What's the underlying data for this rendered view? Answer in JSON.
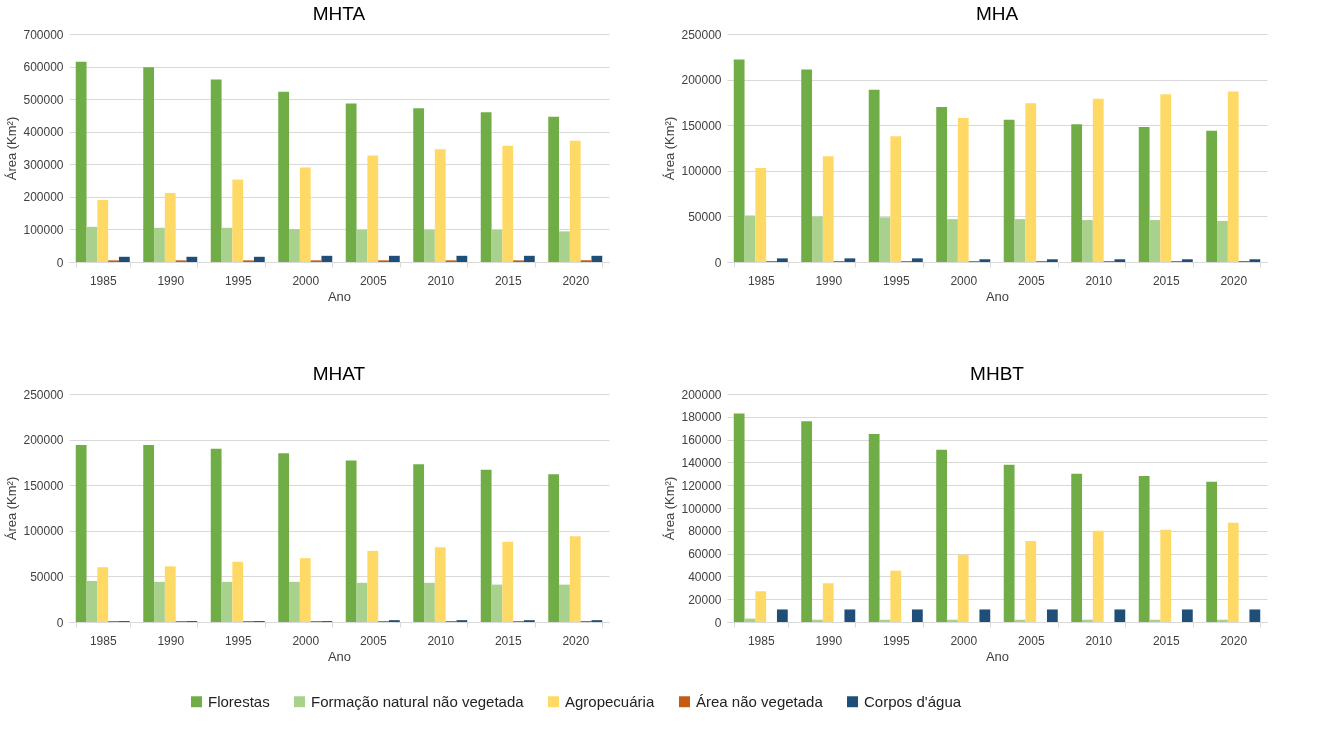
{
  "chart_data": [
    {
      "type": "bar",
      "title": "MHTA",
      "xlabel": "Ano",
      "ylabel": "Área (Km²)",
      "categories": [
        "1985",
        "1990",
        "1995",
        "2000",
        "2005",
        "2010",
        "2015",
        "2020"
      ],
      "ylim": [
        0,
        700000
      ],
      "yticks": [
        0,
        100000,
        200000,
        300000,
        400000,
        500000,
        600000,
        700000
      ],
      "grid": "y",
      "series": [
        {
          "color": "#70ad47",
          "values": [
            615000,
            598000,
            560000,
            523000,
            487000,
            472000,
            460000,
            446000
          ]
        },
        {
          "color": "#a9d18e",
          "values": [
            108000,
            105000,
            105000,
            101000,
            99000,
            99000,
            99000,
            94000
          ]
        },
        {
          "color": "#ffd966",
          "values": [
            190000,
            212000,
            253000,
            290000,
            327000,
            346000,
            357000,
            372000
          ]
        },
        {
          "color": "#c55a11",
          "values": [
            5000,
            5000,
            5000,
            5000,
            5000,
            5000,
            5000,
            5000
          ]
        },
        {
          "color": "#1f4e79",
          "values": [
            16000,
            16000,
            16000,
            19000,
            19000,
            19000,
            19000,
            19000
          ]
        }
      ]
    },
    {
      "type": "bar",
      "title": "MHA",
      "xlabel": "Ano",
      "ylabel": "Área (Km²)",
      "categories": [
        "1985",
        "1990",
        "1995",
        "2000",
        "2005",
        "2010",
        "2015",
        "2020"
      ],
      "ylim": [
        0,
        250000
      ],
      "yticks": [
        0,
        50000,
        100000,
        150000,
        200000,
        250000
      ],
      "grid": "y",
      "series": [
        {
          "color": "#70ad47",
          "values": [
            222000,
            211000,
            189000,
            170000,
            156000,
            151000,
            148000,
            144000
          ]
        },
        {
          "color": "#a9d18e",
          "values": [
            51000,
            50000,
            49000,
            47000,
            47000,
            46000,
            46000,
            45000
          ]
        },
        {
          "color": "#ffd966",
          "values": [
            103000,
            116000,
            138000,
            158000,
            174000,
            179000,
            184000,
            187000
          ]
        },
        {
          "color": "#c55a11",
          "values": [
            1000,
            1000,
            1000,
            1000,
            1000,
            1000,
            1000,
            1000
          ]
        },
        {
          "color": "#1f4e79",
          "values": [
            4000,
            4000,
            4000,
            3000,
            3000,
            3000,
            3000,
            3000
          ]
        }
      ]
    },
    {
      "type": "bar",
      "title": "MHAT",
      "xlabel": "Ano",
      "ylabel": "Área (Km²)",
      "categories": [
        "1985",
        "1990",
        "1995",
        "2000",
        "2005",
        "2010",
        "2015",
        "2020"
      ],
      "ylim": [
        0,
        250000
      ],
      "yticks": [
        0,
        50000,
        100000,
        150000,
        200000,
        250000
      ],
      "grid": "y",
      "legend": "bottom",
      "series": [
        {
          "name": "Florestas",
          "color": "#70ad47",
          "values": [
            194000,
            194000,
            190000,
            185000,
            177000,
            173000,
            167000,
            162000
          ]
        },
        {
          "name": "Formação natural não vegetada",
          "color": "#a9d18e",
          "values": [
            45000,
            44000,
            44000,
            44000,
            43000,
            43000,
            41000,
            41000
          ]
        },
        {
          "name": "Agropecuária",
          "color": "#ffd966",
          "values": [
            60000,
            61000,
            66000,
            70000,
            78000,
            82000,
            88000,
            94000
          ]
        },
        {
          "name": "Área não vegetada",
          "color": "#c55a11",
          "values": [
            1000,
            1000,
            1000,
            1000,
            1000,
            1000,
            1000,
            1000
          ]
        },
        {
          "name": "Corpos d'água",
          "color": "#1f4e79",
          "values": [
            1000,
            1000,
            1000,
            1000,
            2000,
            2000,
            2000,
            2000
          ]
        }
      ]
    },
    {
      "type": "bar",
      "title": "MHBT",
      "xlabel": "Ano",
      "ylabel": "Área (Km²)",
      "categories": [
        "1985",
        "1990",
        "1995",
        "2000",
        "2005",
        "2010",
        "2015",
        "2020"
      ],
      "ylim": [
        0,
        200000
      ],
      "yticks": [
        0,
        20000,
        40000,
        60000,
        80000,
        100000,
        120000,
        140000,
        160000,
        180000,
        200000
      ],
      "grid": "y",
      "series": [
        {
          "color": "#70ad47",
          "values": [
            183000,
            176000,
            165000,
            151000,
            138000,
            130000,
            128000,
            123000
          ]
        },
        {
          "color": "#a9d18e",
          "values": [
            3000,
            2000,
            2000,
            2000,
            2000,
            2000,
            2000,
            2000
          ]
        },
        {
          "color": "#ffd966",
          "values": [
            27000,
            34000,
            45000,
            59000,
            71000,
            80000,
            81000,
            87000
          ]
        },
        {
          "color": "#c55a11",
          "values": [
            0,
            0,
            0,
            0,
            0,
            0,
            0,
            0
          ]
        },
        {
          "color": "#1f4e79",
          "values": [
            11000,
            11000,
            11000,
            11000,
            11000,
            11000,
            11000,
            11000
          ]
        }
      ]
    }
  ]
}
